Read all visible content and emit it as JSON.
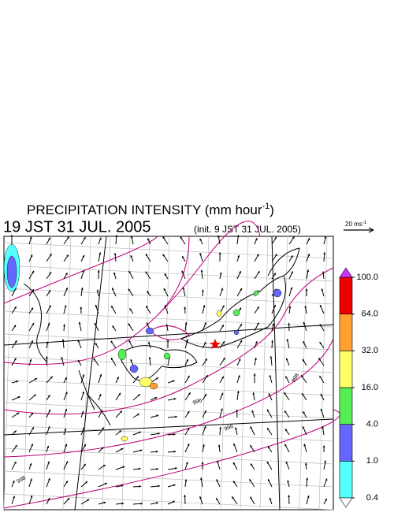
{
  "header": {
    "title": "PRECIPITATION INTENSITY (mm hour",
    "title_sup": "-1",
    "title_end": ")",
    "valid_time": "19 JST 31 JUL. 2005",
    "init_time": "(init. 9 JST 31 JUL. 2005)"
  },
  "reference_vector": {
    "label": "20 ms",
    "label_sup": "-1"
  },
  "colorbar": {
    "levels": [
      0.4,
      {
        "value": 1,
        "label": "1.0"
      },
      {
        "value": 4,
        "label": "4.0"
      },
      {
        "value": 16,
        "label": "16.0"
      },
      {
        "value": 32,
        "label": "32.0"
      },
      {
        "value": 64,
        "label": "64.0"
      },
      {
        "value": 100,
        "label": "100.0"
      }
    ],
    "colors": [
      "#55ffff",
      "#6666ff",
      "#55ee55",
      "#ffff66",
      "#ffa030",
      "#ee0000"
    ],
    "under_color": "#ffffff",
    "over_color": "#cc33ff"
  },
  "contour_labels": [
    "998",
    "996",
    "996",
    "998"
  ]
}
